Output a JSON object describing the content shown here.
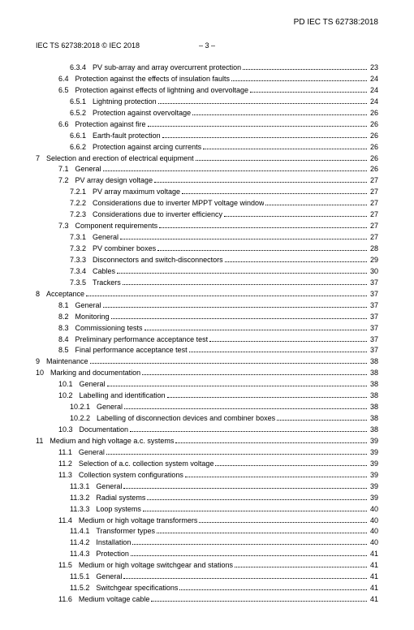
{
  "top_header": "PD IEC TS 62738:2018",
  "header_left": "IEC TS 62738:2018 © IEC 2018",
  "header_center": "– 3 –",
  "toc": [
    {
      "indent": 3,
      "num": "6.3.4",
      "title": "PV sub-array and array overcurrent protection",
      "page": "23"
    },
    {
      "indent": 2,
      "num": "6.4",
      "title": "Protection against the effects of insulation faults",
      "page": "24"
    },
    {
      "indent": 2,
      "num": "6.5",
      "title": "Protection against effects of lightning and overvoltage",
      "page": "24"
    },
    {
      "indent": 3,
      "num": "6.5.1",
      "title": "Lightning protection",
      "page": "24"
    },
    {
      "indent": 3,
      "num": "6.5.2",
      "title": "Protection against overvoltage",
      "page": "26"
    },
    {
      "indent": 2,
      "num": "6.6",
      "title": "Protection against fire",
      "page": "26"
    },
    {
      "indent": 3,
      "num": "6.6.1",
      "title": "Earth-fault protection",
      "page": "26"
    },
    {
      "indent": 3,
      "num": "6.6.2",
      "title": "Protection against arcing currents",
      "page": "26"
    },
    {
      "indent": 0,
      "num": "7",
      "title": "Selection and erection of electrical equipment",
      "page": "26"
    },
    {
      "indent": 2,
      "num": "7.1",
      "title": "General",
      "page": "26"
    },
    {
      "indent": 2,
      "num": "7.2",
      "title": "PV array design voltage",
      "page": "27"
    },
    {
      "indent": 3,
      "num": "7.2.1",
      "title": "PV array maximum voltage",
      "page": "27"
    },
    {
      "indent": 3,
      "num": "7.2.2",
      "title": "Considerations due to inverter MPPT voltage window",
      "page": "27"
    },
    {
      "indent": 3,
      "num": "7.2.3",
      "title": "Considerations due to inverter efficiency",
      "page": "27"
    },
    {
      "indent": 2,
      "num": "7.3",
      "title": "Component requirements",
      "page": "27"
    },
    {
      "indent": 3,
      "num": "7.3.1",
      "title": "General",
      "page": "27"
    },
    {
      "indent": 3,
      "num": "7.3.2",
      "title": "PV combiner boxes",
      "page": "28"
    },
    {
      "indent": 3,
      "num": "7.3.3",
      "title": "Disconnectors and switch-disconnectors",
      "page": "29"
    },
    {
      "indent": 3,
      "num": "7.3.4",
      "title": "Cables",
      "page": "30"
    },
    {
      "indent": 3,
      "num": "7.3.5",
      "title": "Trackers",
      "page": "37"
    },
    {
      "indent": 0,
      "num": "8",
      "title": "Acceptance",
      "page": "37"
    },
    {
      "indent": 2,
      "num": "8.1",
      "title": "General",
      "page": "37"
    },
    {
      "indent": 2,
      "num": "8.2",
      "title": "Monitoring",
      "page": "37"
    },
    {
      "indent": 2,
      "num": "8.3",
      "title": "Commissioning tests",
      "page": "37"
    },
    {
      "indent": 2,
      "num": "8.4",
      "title": "Preliminary performance acceptance test",
      "page": "37"
    },
    {
      "indent": 2,
      "num": "8.5",
      "title": "Final performance acceptance test",
      "page": "37"
    },
    {
      "indent": 0,
      "num": "9",
      "title": "Maintenance",
      "page": "38"
    },
    {
      "indent": 0,
      "num": "10",
      "title": "Marking and documentation",
      "page": "38"
    },
    {
      "indent": 2,
      "num": "10.1",
      "title": "General",
      "page": "38"
    },
    {
      "indent": 2,
      "num": "10.2",
      "title": "Labelling and identification",
      "page": "38"
    },
    {
      "indent": 3,
      "num": "10.2.1",
      "title": "General",
      "page": "38"
    },
    {
      "indent": 3,
      "num": "10.2.2",
      "title": "Labelling of disconnection devices and combiner boxes",
      "page": "38"
    },
    {
      "indent": 2,
      "num": "10.3",
      "title": "Documentation",
      "page": "38"
    },
    {
      "indent": 0,
      "num": "11",
      "title": "Medium and high voltage a.c. systems",
      "page": "39"
    },
    {
      "indent": 2,
      "num": "11.1",
      "title": "General",
      "page": "39"
    },
    {
      "indent": 2,
      "num": "11.2",
      "title": "Selection of a.c. collection system voltage",
      "page": "39"
    },
    {
      "indent": 2,
      "num": "11.3",
      "title": "Collection system configurations",
      "page": "39"
    },
    {
      "indent": 3,
      "num": "11.3.1",
      "title": "General",
      "page": "39"
    },
    {
      "indent": 3,
      "num": "11.3.2",
      "title": "Radial systems",
      "page": "39"
    },
    {
      "indent": 3,
      "num": "11.3.3",
      "title": "Loop systems",
      "page": "40"
    },
    {
      "indent": 2,
      "num": "11.4",
      "title": "Medium or high voltage transformers",
      "page": "40"
    },
    {
      "indent": 3,
      "num": "11.4.1",
      "title": "Transformer types",
      "page": "40"
    },
    {
      "indent": 3,
      "num": "11.4.2",
      "title": "Installation",
      "page": "40"
    },
    {
      "indent": 3,
      "num": "11.4.3",
      "title": "Protection",
      "page": "41"
    },
    {
      "indent": 2,
      "num": "11.5",
      "title": "Medium or high voltage switchgear and stations",
      "page": "41"
    },
    {
      "indent": 3,
      "num": "11.5.1",
      "title": "General",
      "page": "41"
    },
    {
      "indent": 3,
      "num": "11.5.2",
      "title": "Switchgear specifications",
      "page": "41"
    },
    {
      "indent": 2,
      "num": "11.6",
      "title": "Medium voltage cable",
      "page": "41"
    }
  ]
}
